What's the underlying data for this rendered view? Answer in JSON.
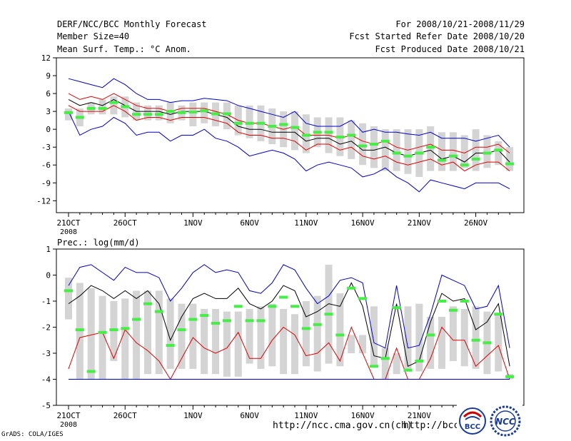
{
  "header": {
    "title": "DERF/NCC/BCC Monthly Forecast",
    "member_size": "Member Size=40",
    "variable": "Mean Surf. Temp.: °C Anom.",
    "period": "For 2008/10/21-2008/11/29",
    "started": "Fcst Started Refer Date 2008/10/20",
    "produced": "Fcst Produced Date 2008/10/21"
  },
  "footer": {
    "grads": "GrADS: COLA/IGES",
    "url1": "http://ncc.cma.gov.cn(ch)",
    "url2": "http://bcc.c",
    "logo_bcc": "BCC",
    "logo_ncc": "NCC"
  },
  "colors": {
    "box": "#d4d4d4",
    "median": "#44ee44",
    "mean": "#000000",
    "spread": "#e00000",
    "envelope": "#0000cc"
  },
  "chart_data": [
    {
      "type": "box-line",
      "title": "Mean Surf. Temp.: °C Anom.",
      "ylabel": "°C Anom.",
      "ylim": [
        -14,
        12
      ],
      "yticks": [
        12,
        9,
        6,
        3,
        0,
        -3,
        -6,
        -9,
        -12
      ],
      "xticks": [
        "21OCT",
        "26OCT",
        "1NOV",
        "6NOV",
        "11NOV",
        "16NOV",
        "21NOV",
        "26NOV"
      ],
      "xtick_days": [
        0,
        5,
        11,
        16,
        21,
        26,
        31,
        36
      ],
      "year_label": "2008",
      "days": 40,
      "box_low": [
        1.5,
        0.5,
        2.5,
        2.5,
        2.5,
        2,
        1.5,
        1.5,
        1.5,
        1,
        1.5,
        0.5,
        1,
        0.5,
        0,
        -1,
        -1.5,
        -2,
        -2.5,
        -3,
        -3.5,
        -4,
        -3,
        -4,
        -4.5,
        -5,
        -6,
        -6.5,
        -7,
        -7,
        -7.5,
        -8,
        -7,
        -7,
        -7,
        -6.5,
        -7,
        -6.5,
        -6,
        -7
      ],
      "box_high": [
        3.5,
        3.5,
        4.5,
        5,
        5.5,
        5.5,
        4.5,
        4,
        4,
        4.5,
        4,
        4.5,
        4.5,
        4.5,
        4.5,
        4,
        4,
        4,
        3.5,
        3,
        3,
        2.5,
        2,
        2,
        2,
        1.5,
        1,
        0.5,
        0,
        0,
        0,
        0,
        0.5,
        -0.5,
        -0.5,
        -1,
        0,
        -1,
        -2,
        -3
      ],
      "median": [
        2.8,
        2.0,
        3.5,
        3.5,
        4.5,
        3.8,
        2.5,
        2.5,
        2.5,
        3.0,
        2.8,
        2.9,
        3.1,
        2.6,
        2.6,
        1.0,
        1.0,
        1.0,
        0.5,
        0.8,
        0.3,
        -1.0,
        -0.5,
        -0.5,
        -1.3,
        -1.0,
        -2.8,
        -2.5,
        -2.0,
        -4.0,
        -4.5,
        -4.0,
        -3.0,
        -5.2,
        -4.5,
        -6.0,
        -5.0,
        -4.0,
        -3.5,
        -5.8
      ],
      "series": [
        {
          "name": "envelope_max",
          "values": [
            8.5,
            8,
            7.5,
            7,
            8.5,
            7.5,
            6,
            5,
            5,
            4.5,
            4.8,
            4.8,
            5.2,
            5,
            4.8,
            4,
            3.5,
            3,
            2.5,
            2,
            3,
            1,
            0.5,
            0.5,
            0.5,
            1.5,
            -0.5,
            0,
            -0.5,
            -0.5,
            -0.8,
            -1,
            -0.5,
            -1.5,
            -1.5,
            -1.5,
            -2,
            -1.5,
            -1,
            -3
          ]
        },
        {
          "name": "spread_upper",
          "values": [
            6,
            5,
            5.5,
            5,
            6,
            5,
            4,
            3.5,
            3.5,
            3,
            3.5,
            3.5,
            3.5,
            3,
            2.5,
            1.5,
            1,
            1,
            0.5,
            0,
            0.5,
            -1,
            -1,
            -1,
            -1.5,
            -1,
            -2,
            -2.5,
            -2,
            -3,
            -3.5,
            -3,
            -2.5,
            -3.5,
            -3.5,
            -4,
            -3,
            -3,
            -2.5,
            -4
          ]
        },
        {
          "name": "mean",
          "values": [
            5,
            4,
            4.5,
            4,
            5,
            4,
            3,
            3,
            3,
            2.5,
            3,
            3,
            3,
            2.5,
            2,
            0.5,
            0,
            0,
            -0.5,
            -0.5,
            -0.5,
            -2,
            -1.5,
            -1.5,
            -2.5,
            -2,
            -3.5,
            -3.5,
            -3,
            -4,
            -4.5,
            -4,
            -3.5,
            -5,
            -4.5,
            -5.5,
            -4,
            -4,
            -3.5,
            -5.5
          ]
        },
        {
          "name": "spread_lower",
          "values": [
            4,
            3,
            3,
            3,
            4,
            3,
            1.5,
            2,
            2,
            1.5,
            2,
            2,
            2,
            1.5,
            1,
            -0.5,
            -1,
            -1,
            -1.5,
            -1.5,
            -2,
            -3.5,
            -2.5,
            -2.5,
            -3.5,
            -3,
            -4.5,
            -5,
            -4.5,
            -5.5,
            -6,
            -5.5,
            -5,
            -6,
            -5.5,
            -7,
            -6,
            -5.5,
            -5.5,
            -7
          ]
        },
        {
          "name": "envelope_min",
          "values": [
            3,
            -1,
            0,
            0.5,
            2,
            1,
            -1,
            -0.5,
            -0.5,
            -2,
            -1,
            -1,
            0,
            -1.5,
            -2,
            -3,
            -4.5,
            -4,
            -3.5,
            -4,
            -5,
            -7,
            -6,
            -5.5,
            -6,
            -6.5,
            -8,
            -7.5,
            -6.5,
            -8,
            -9,
            -10.5,
            -8.5,
            -9,
            -9.5,
            -10,
            -9,
            -9,
            -9,
            -10
          ]
        }
      ]
    },
    {
      "type": "box-line",
      "title": "Prec.: log(mm/d)",
      "ylabel": "log(mm/d)",
      "ylim": [
        -5,
        1
      ],
      "yticks": [
        1,
        0,
        -1,
        -2,
        -3,
        -4,
        -5
      ],
      "xticks": [
        "21OCT",
        "26OCT",
        "1NOV",
        "6NOV",
        "11NOV",
        "16NOV",
        "21NOV",
        "26NOV"
      ],
      "xtick_days": [
        0,
        5,
        11,
        16,
        21,
        26,
        31,
        36
      ],
      "year_label": "2008",
      "days": 40,
      "box_low": [
        -1.7,
        -4,
        -4,
        -4,
        -3.3,
        -4,
        -4,
        -3.8,
        -3.8,
        -3.6,
        -3.6,
        -3.6,
        -3.8,
        -3.8,
        -3.9,
        -3.9,
        -3.4,
        -3.6,
        -3.5,
        -3.8,
        -3.8,
        -3.5,
        -3.7,
        -3.4,
        -3.5,
        -3.0,
        -3.0,
        -3.5,
        -4,
        -3.8,
        -3.7,
        -3.7,
        -3.6,
        -3.6,
        -3.3,
        -3.5,
        -3.6,
        -3.8,
        -3.7,
        -4
      ],
      "box_high": [
        -0.1,
        -0.3,
        -0.5,
        -0.8,
        -1.0,
        -0.9,
        -0.6,
        -0.6,
        -0.6,
        -0.9,
        -1.1,
        -1.1,
        -1.3,
        -1.3,
        -1.4,
        -1.4,
        -1.3,
        -1.2,
        -1.1,
        -1.3,
        -1.5,
        -1.0,
        -0.8,
        0.4,
        -0.7,
        -2.3,
        -2.3,
        -1.2,
        -2.8,
        -3.0,
        -1.2,
        -1.1,
        -1.6,
        -1.6,
        -1.2,
        -1.3,
        -1.2,
        -1.4,
        -1.5,
        -3.8
      ],
      "median": [
        -0.6,
        -2.1,
        -3.7,
        -2.2,
        -2.1,
        -2.05,
        -1.7,
        -1.1,
        -1.4,
        -2.7,
        -2.1,
        -1.7,
        -1.55,
        -1.85,
        -1.75,
        -1.2,
        -1.75,
        -1.75,
        -1.2,
        -0.85,
        -1.2,
        -2.05,
        -1.9,
        -1.5,
        -2.3,
        -0.5,
        -0.9,
        -3.5,
        -3.2,
        -1.25,
        -3.65,
        -3.3,
        -2.3,
        -1.0,
        -1.35,
        -1.0,
        -2.5,
        -2.6,
        -1.5,
        -3.9
      ],
      "series": [
        {
          "name": "envelope_max",
          "values": [
            -0.4,
            0.3,
            0.4,
            0.1,
            -0.2,
            0.3,
            0.1,
            0.1,
            -0.1,
            -1.0,
            -0.5,
            0.1,
            0.4,
            0.1,
            0.2,
            0.1,
            -0.6,
            -0.7,
            -0.3,
            0.4,
            0.2,
            -0.5,
            -1.1,
            -0.8,
            -0.2,
            -0.1,
            -0.3,
            -2.6,
            -2.8,
            -0.4,
            -2.8,
            -2.7,
            -1.5,
            0.0,
            -0.2,
            -0.4,
            -1.3,
            -1.2,
            -0.4,
            -2.8
          ]
        },
        {
          "name": "mean",
          "values": [
            -1.1,
            -0.8,
            -0.4,
            -0.6,
            -0.9,
            -0.6,
            -0.9,
            -0.6,
            -1.1,
            -2.5,
            -1.6,
            -0.9,
            -0.7,
            -0.9,
            -0.9,
            -0.5,
            -1.1,
            -1.3,
            -1.0,
            -0.4,
            -0.6,
            -1.6,
            -1.4,
            -1.1,
            -1.2,
            -0.3,
            -1.2,
            -3.1,
            -3.2,
            -1.1,
            -3.5,
            -3.3,
            -1.8,
            -0.7,
            -1.0,
            -0.9,
            -2.1,
            -1.8,
            -1.1,
            -3.5
          ]
        },
        {
          "name": "spread_lower",
          "values": [
            -3.6,
            -2.4,
            -2.3,
            -2.2,
            -3.2,
            -2.1,
            -2.6,
            -2.9,
            -3.3,
            -4.0,
            -3.2,
            -2.4,
            -2.8,
            -3.0,
            -2.8,
            -2.2,
            -3.2,
            -3.2,
            -2.5,
            -2.0,
            -2.3,
            -3.1,
            -3.0,
            -2.6,
            -3.3,
            -2.0,
            -3.0,
            -4.0,
            -4.0,
            -2.8,
            -4.0,
            -4.0,
            -3.2,
            -2.0,
            -2.5,
            -2.5,
            -3.5,
            -3.1,
            -2.7,
            -4.0
          ]
        },
        {
          "name": "envelope_min",
          "values": [
            -4,
            -4,
            -4,
            -4,
            -4,
            -4,
            -4,
            -4,
            -4,
            -4,
            -4,
            -4,
            -4,
            -4,
            -4,
            -4,
            -4,
            -4,
            -4,
            -4,
            -4,
            -4,
            -4,
            -4,
            -4,
            -4,
            -4,
            -4,
            -4,
            -4,
            -4,
            -4,
            -4,
            -4,
            -4,
            -4,
            -4,
            -4,
            -4,
            -4
          ]
        }
      ]
    }
  ]
}
